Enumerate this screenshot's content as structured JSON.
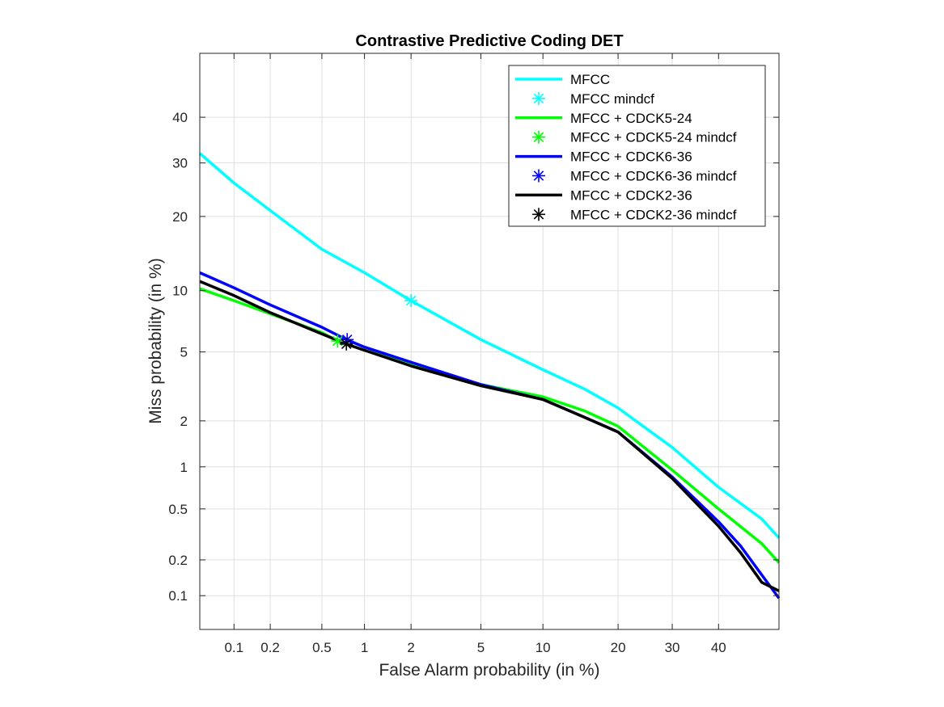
{
  "chart_data": {
    "type": "line",
    "title": "Contrastive Predictive Coding DET",
    "xlabel": "False Alarm probability (in %)",
    "ylabel": "Miss probability (in %)",
    "scale": "probit",
    "xlim": [
      0.05,
      54
    ],
    "ylim": [
      0.05,
      55
    ],
    "grid": true,
    "legend_position": "top-right",
    "x_ticks": [
      {
        "value": 0.1,
        "label": "0.1"
      },
      {
        "value": 0.2,
        "label": "0.2"
      },
      {
        "value": 0.5,
        "label": "0.5"
      },
      {
        "value": 1,
        "label": "1"
      },
      {
        "value": 2,
        "label": "2"
      },
      {
        "value": 5,
        "label": "5"
      },
      {
        "value": 10,
        "label": "10"
      },
      {
        "value": 20,
        "label": "20"
      },
      {
        "value": 30,
        "label": "30"
      },
      {
        "value": 40,
        "label": "40"
      }
    ],
    "y_ticks": [
      {
        "value": 0.1,
        "label": "0.1"
      },
      {
        "value": 0.2,
        "label": "0.2"
      },
      {
        "value": 0.5,
        "label": "0.5"
      },
      {
        "value": 1,
        "label": "1"
      },
      {
        "value": 2,
        "label": "2"
      },
      {
        "value": 5,
        "label": "5"
      },
      {
        "value": 10,
        "label": "10"
      },
      {
        "value": 20,
        "label": "20"
      },
      {
        "value": 30,
        "label": "30"
      },
      {
        "value": 40,
        "label": "40"
      }
    ],
    "series": [
      {
        "name": "MFCC",
        "marker_name": "MFCC mindcf",
        "color": "#00FFFF",
        "x": [
          0.05,
          0.1,
          0.2,
          0.5,
          1,
          2,
          5,
          10,
          15,
          20,
          30,
          40,
          50,
          54
        ],
        "y": [
          32,
          26,
          21,
          15,
          12,
          9,
          5.8,
          4,
          3.1,
          2.4,
          1.35,
          0.72,
          0.42,
          0.3
        ],
        "mindcf": [
          2,
          9
        ]
      },
      {
        "name": "MFCC + CDCK5-24",
        "marker_name": "MFCC + CDCK5-24 mindcf",
        "color": "#00FF00",
        "x": [
          0.05,
          0.1,
          0.2,
          0.5,
          0.65,
          1,
          2,
          5,
          10,
          15,
          20,
          30,
          40,
          50,
          54
        ],
        "y": [
          10.2,
          9,
          7.8,
          6.3,
          5.7,
          5.1,
          4.3,
          3.3,
          2.8,
          2.3,
          1.85,
          0.95,
          0.5,
          0.27,
          0.19
        ],
        "mindcf": [
          0.65,
          5.7
        ]
      },
      {
        "name": "MFCC + CDCK6-36",
        "marker_name": "MFCC + CDCK6-36 mindcf",
        "color": "#0000FF",
        "x": [
          0.05,
          0.1,
          0.2,
          0.5,
          0.75,
          1,
          2,
          5,
          10,
          15,
          20,
          30,
          40,
          45,
          50,
          54
        ],
        "y": [
          12,
          10.3,
          8.6,
          6.7,
          5.8,
          5.3,
          4.4,
          3.3,
          2.7,
          2.1,
          1.7,
          0.85,
          0.4,
          0.26,
          0.15,
          0.095
        ],
        "mindcf": [
          0.76,
          5.8
        ]
      },
      {
        "name": "MFCC + CDCK2-36",
        "marker_name": "MFCC + CDCK2-36 mindcf",
        "color": "#000000",
        "x": [
          0.05,
          0.1,
          0.2,
          0.5,
          0.75,
          1,
          2,
          5,
          10,
          15,
          20,
          30,
          40,
          45,
          50,
          54
        ],
        "y": [
          11,
          9.5,
          7.9,
          6.2,
          5.5,
          5.1,
          4.2,
          3.25,
          2.7,
          2.1,
          1.7,
          0.83,
          0.37,
          0.23,
          0.13,
          0.11
        ],
        "mindcf": [
          0.75,
          5.5
        ]
      }
    ]
  }
}
